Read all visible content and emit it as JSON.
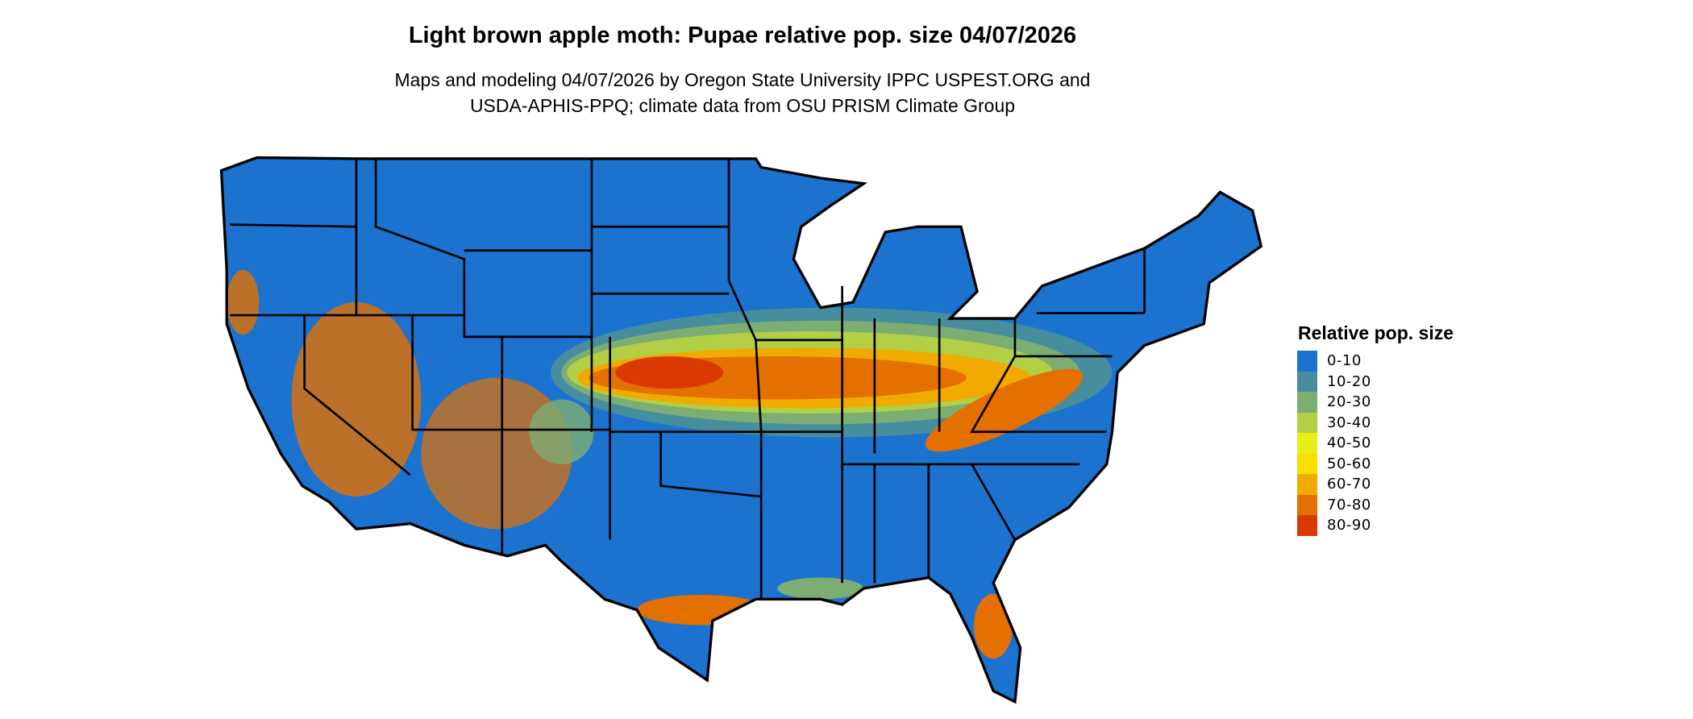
{
  "title": "Light brown apple moth: Pupae relative pop. size 04/07/2026",
  "subtitle": [
    "Maps and modeling 04/07/2026 by Oregon State University IPPC USPEST.ORG and",
    "USDA-APHIS-PPQ; climate data from OSU PRISM Climate Group"
  ],
  "legend": {
    "title": "Relative pop. size",
    "items": [
      {
        "label": "0-10",
        "color": "#1B73CF"
      },
      {
        "label": "10-20",
        "color": "#468E9E"
      },
      {
        "label": "20-30",
        "color": "#7CAE74"
      },
      {
        "label": "30-40",
        "color": "#B2CF45"
      },
      {
        "label": "40-50",
        "color": "#E6EE16"
      },
      {
        "label": "50-60",
        "color": "#F9DF00"
      },
      {
        "label": "60-70",
        "color": "#F0AA00"
      },
      {
        "label": "70-80",
        "color": "#E47000"
      },
      {
        "label": "80-90",
        "color": "#DA3A00"
      }
    ]
  },
  "map": {
    "region": "Contiguous United States",
    "boundaries": "state outlines in black",
    "background_class_color": "#1B73CF"
  }
}
